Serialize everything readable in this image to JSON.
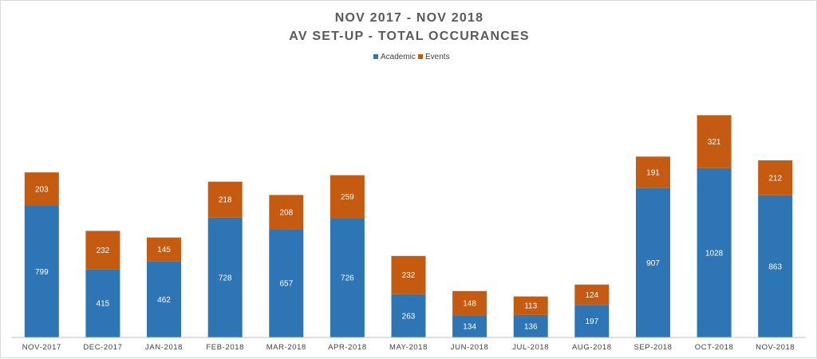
{
  "chart_data": {
    "type": "bar",
    "stacked": true,
    "title": [
      "NOV 2017 - NOV 2018",
      "AV SET-UP - TOTAL OCCURANCES"
    ],
    "categories": [
      "NOV-2017",
      "DEC-2017",
      "JAN-2018",
      "FEB-2018",
      "MAR-2018",
      "APR-2018",
      "MAY-2018",
      "JUN-2018",
      "JUL-2018",
      "AUG-2018",
      "SEP-2018",
      "OCT-2018",
      "NOV-2018"
    ],
    "series": [
      {
        "name": "Academic",
        "color": "#2e75b6",
        "values": [
          799,
          415,
          462,
          728,
          657,
          726,
          263,
          134,
          136,
          197,
          907,
          1028,
          863
        ]
      },
      {
        "name": "Events",
        "color": "#c55a11",
        "values": [
          203,
          232,
          145,
          218,
          208,
          259,
          232,
          148,
          113,
          124,
          191,
          321,
          212
        ]
      }
    ],
    "ylim": [
      0,
      1350
    ],
    "grid": false,
    "legend_position": "top-center",
    "data_labels": true
  }
}
